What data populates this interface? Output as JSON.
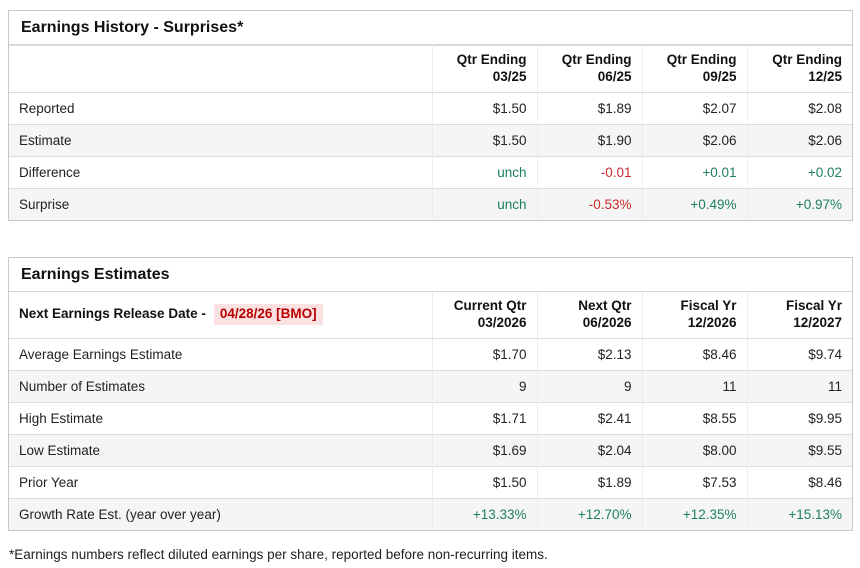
{
  "colors": {
    "positive": "#208060",
    "negative": "#c92a2a",
    "release_date_text": "#b80000",
    "release_date_bg": "#fbe1e1",
    "alt_row_bg": "#f5f5f5",
    "border": "#c9c9c9"
  },
  "history": {
    "title": "Earnings History - Surprises*",
    "columns": [
      {
        "line1": "Qtr Ending",
        "line2": "03/25"
      },
      {
        "line1": "Qtr Ending",
        "line2": "06/25"
      },
      {
        "line1": "Qtr Ending",
        "line2": "09/25"
      },
      {
        "line1": "Qtr Ending",
        "line2": "12/25"
      }
    ],
    "rows": [
      {
        "label": "Reported",
        "values": [
          {
            "text": "$1.50"
          },
          {
            "text": "$1.89"
          },
          {
            "text": "$2.07"
          },
          {
            "text": "$2.08"
          }
        ]
      },
      {
        "label": "Estimate",
        "values": [
          {
            "text": "$1.50"
          },
          {
            "text": "$1.90"
          },
          {
            "text": "$2.06"
          },
          {
            "text": "$2.06"
          }
        ]
      },
      {
        "label": "Difference",
        "values": [
          {
            "text": "unch",
            "cls": "pos"
          },
          {
            "text": "-0.01",
            "cls": "neg"
          },
          {
            "text": "+0.01",
            "cls": "pos"
          },
          {
            "text": "+0.02",
            "cls": "pos"
          }
        ]
      },
      {
        "label": "Surprise",
        "values": [
          {
            "text": "unch",
            "cls": "pos"
          },
          {
            "text": "-0.53%",
            "cls": "neg"
          },
          {
            "text": "+0.49%",
            "cls": "pos"
          },
          {
            "text": "+0.97%",
            "cls": "pos"
          }
        ]
      }
    ]
  },
  "estimates": {
    "title": "Earnings Estimates",
    "release_label": "Next Earnings Release Date -",
    "release_date": "04/28/26 [BMO]",
    "columns": [
      {
        "line1": "Current Qtr",
        "line2": "03/2026"
      },
      {
        "line1": "Next Qtr",
        "line2": "06/2026"
      },
      {
        "line1": "Fiscal Yr",
        "line2": "12/2026"
      },
      {
        "line1": "Fiscal Yr",
        "line2": "12/2027"
      }
    ],
    "rows": [
      {
        "label": "Average Earnings Estimate",
        "values": [
          {
            "text": "$1.70"
          },
          {
            "text": "$2.13"
          },
          {
            "text": "$8.46"
          },
          {
            "text": "$9.74"
          }
        ]
      },
      {
        "label": "Number of Estimates",
        "values": [
          {
            "text": "9"
          },
          {
            "text": "9"
          },
          {
            "text": "11"
          },
          {
            "text": "11"
          }
        ]
      },
      {
        "label": "High Estimate",
        "values": [
          {
            "text": "$1.71"
          },
          {
            "text": "$2.41"
          },
          {
            "text": "$8.55"
          },
          {
            "text": "$9.95"
          }
        ]
      },
      {
        "label": "Low Estimate",
        "values": [
          {
            "text": "$1.69"
          },
          {
            "text": "$2.04"
          },
          {
            "text": "$8.00"
          },
          {
            "text": "$9.55"
          }
        ]
      },
      {
        "label": "Prior Year",
        "values": [
          {
            "text": "$1.50"
          },
          {
            "text": "$1.89"
          },
          {
            "text": "$7.53"
          },
          {
            "text": "$8.46"
          }
        ]
      },
      {
        "label": "Growth Rate Est. (year over year)",
        "values": [
          {
            "text": "+13.33%",
            "cls": "pos"
          },
          {
            "text": "+12.70%",
            "cls": "pos"
          },
          {
            "text": "+12.35%",
            "cls": "pos"
          },
          {
            "text": "+15.13%",
            "cls": "pos"
          }
        ]
      }
    ]
  },
  "footnote": "*Earnings numbers reflect diluted earnings per share, reported before non-recurring items."
}
